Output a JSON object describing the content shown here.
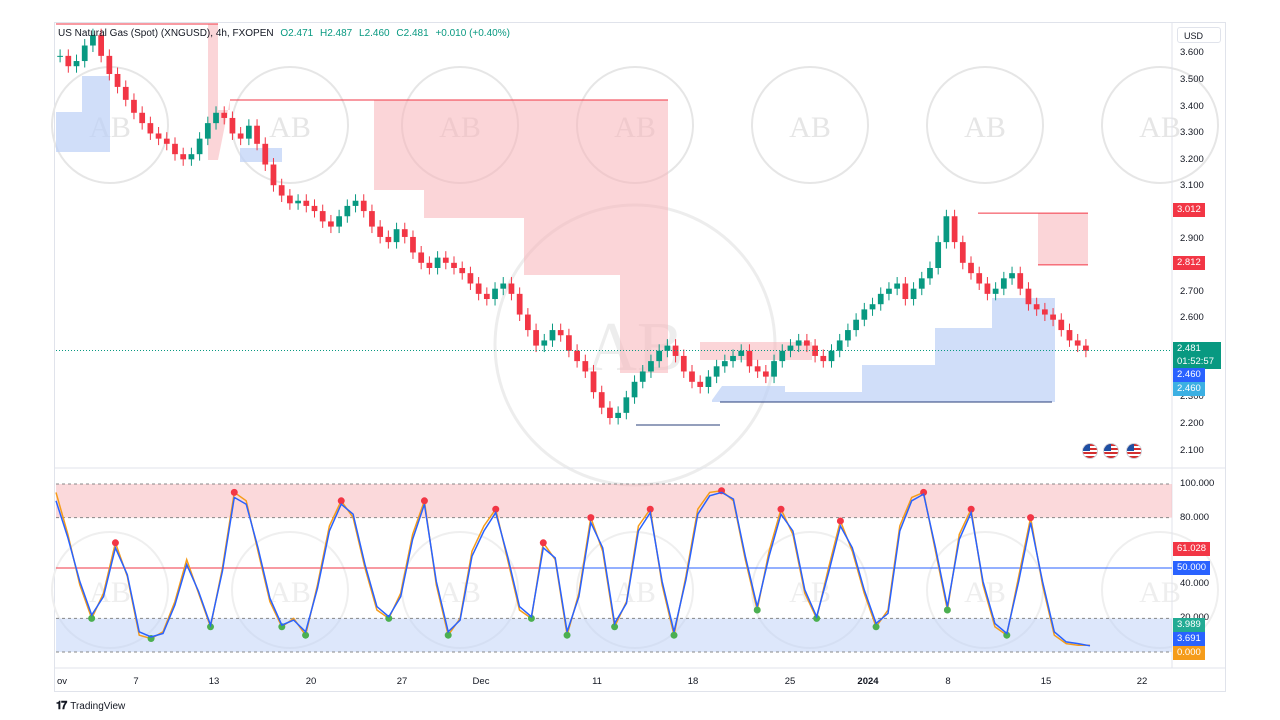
{
  "legend": {
    "symbol": "US Natural Gas (Spot) (XNGUSD), 4h, FXOPEN",
    "open": "O2.471",
    "high": "H2.487",
    "low": "L2.460",
    "close": "C2.481",
    "change": "+0.010 (+0.40%)"
  },
  "currency": "USD",
  "price_axis": [
    "3.600",
    "3.500",
    "3.400",
    "3.300",
    "3.200",
    "3.100",
    "2.900",
    "2.700",
    "2.600",
    "2.300",
    "2.200",
    "2.100"
  ],
  "price_tags": {
    "resistance_high": "3.012",
    "resistance_low": "2.812",
    "last_price": "2.481",
    "countdown": "01:52:57",
    "support_a": "2.460",
    "support_b": "2.460"
  },
  "oscillator_axis": [
    "100.000",
    "80.000",
    "40.000",
    "20.000"
  ],
  "oscillator_tags": {
    "level_61": "61.028",
    "level_50": "50.000",
    "k_value": "3.989",
    "d_value": "3.691",
    "zero": "0.000"
  },
  "time_axis": [
    "ov",
    "7",
    "13",
    "20",
    "27",
    "Dec",
    "11",
    "18",
    "25",
    "2024",
    "8",
    "15",
    "22"
  ],
  "brand": "TradingView",
  "watermark": "AB",
  "colors": {
    "up": "#089981",
    "down": "#f23645",
    "red_zone": "#f7b3b8",
    "blue_zone": "#bcd0f7",
    "k_line": "#f59c1a",
    "d_line": "#2962ff",
    "tag_red": "#f23645",
    "tag_green": "#089981",
    "tag_blue": "#2962ff",
    "tag_teal": "#22ab94",
    "tag_orange": "#f59c1a",
    "tag_cyan": "#3cb0e3"
  },
  "icons": [
    "us-flag-icon",
    "us-flag-icon",
    "us-flag-icon"
  ],
  "chart_data": [
    {
      "type": "candlestick",
      "title": "US Natural Gas (Spot) (XNGUSD), 4h, FXOPEN",
      "ylim": [
        2.05,
        3.72
      ],
      "y_ticks": [
        3.6,
        3.5,
        3.4,
        3.3,
        3.2,
        3.1,
        2.9,
        2.7,
        2.6,
        2.3,
        2.2,
        2.1
      ],
      "x_categories": [
        "ov",
        "7",
        "13",
        "20",
        "27",
        "Dec",
        "11",
        "18",
        "25",
        "2024",
        "8",
        "15",
        "22"
      ],
      "close_path": [
        3.62,
        3.58,
        3.6,
        3.66,
        3.7,
        3.62,
        3.55,
        3.5,
        3.45,
        3.4,
        3.36,
        3.32,
        3.3,
        3.28,
        3.24,
        3.22,
        3.24,
        3.3,
        3.36,
        3.4,
        3.38,
        3.32,
        3.3,
        3.35,
        3.28,
        3.2,
        3.12,
        3.08,
        3.05,
        3.06,
        3.04,
        3.02,
        2.98,
        2.96,
        3.0,
        3.04,
        3.06,
        3.02,
        2.96,
        2.92,
        2.9,
        2.95,
        2.92,
        2.86,
        2.82,
        2.8,
        2.84,
        2.82,
        2.8,
        2.78,
        2.74,
        2.7,
        2.68,
        2.72,
        2.74,
        2.7,
        2.62,
        2.56,
        2.5,
        2.52,
        2.56,
        2.54,
        2.48,
        2.44,
        2.4,
        2.32,
        2.26,
        2.22,
        2.24,
        2.3,
        2.36,
        2.4,
        2.44,
        2.48,
        2.5,
        2.46,
        2.4,
        2.36,
        2.34,
        2.38,
        2.42,
        2.44,
        2.46,
        2.48,
        2.42,
        2.4,
        2.38,
        2.44,
        2.48,
        2.5,
        2.52,
        2.5,
        2.46,
        2.44,
        2.48,
        2.52,
        2.56,
        2.6,
        2.64,
        2.66,
        2.7,
        2.72,
        2.74,
        2.68,
        2.72,
        2.76,
        2.8,
        2.9,
        3.0,
        2.9,
        2.82,
        2.78,
        2.74,
        2.7,
        2.72,
        2.76,
        2.78,
        2.72,
        2.66,
        2.64,
        2.62,
        2.6,
        2.56,
        2.52,
        2.5,
        2.48
      ],
      "last_close": 2.481,
      "zones": [
        {
          "kind": "resistance",
          "from": 2.812,
          "to": 3.012
        },
        {
          "kind": "support",
          "level": 2.46
        }
      ]
    },
    {
      "type": "line",
      "title": "",
      "ylim": [
        0,
        100
      ],
      "y_ticks": [
        100,
        80,
        40,
        20
      ],
      "levels": [
        100,
        80,
        61.028,
        50,
        20,
        0
      ],
      "series": [
        {
          "values": [
            95,
            70,
            40,
            20,
            35,
            65,
            45,
            10,
            8,
            12,
            30,
            55,
            35,
            15,
            50,
            95,
            90,
            60,
            30,
            15,
            20,
            10,
            40,
            75,
            90,
            80,
            50,
            25,
            20,
            35,
            70,
            90,
            40,
            10,
            20,
            60,
            75,
            85,
            55,
            25,
            20,
            65,
            55,
            10,
            35,
            80,
            60,
            15,
            30,
            75,
            85,
            40,
            10,
            45,
            85,
            95,
            96,
            90,
            55,
            25,
            60,
            85,
            70,
            35,
            20,
            50,
            78,
            60,
            35,
            15,
            25,
            75,
            92,
            95,
            60,
            25,
            70,
            85,
            40,
            15,
            10,
            45,
            80,
            40,
            10,
            5,
            4,
            3.989
          ]
        },
        {
          "values": [
            90,
            68,
            42,
            22,
            33,
            62,
            46,
            12,
            9,
            11,
            28,
            52,
            36,
            16,
            48,
            92,
            88,
            62,
            32,
            16,
            19,
            12,
            38,
            72,
            88,
            82,
            52,
            27,
            21,
            33,
            67,
            88,
            42,
            12,
            19,
            57,
            72,
            83,
            57,
            27,
            21,
            62,
            56,
            12,
            33,
            77,
            62,
            17,
            29,
            72,
            83,
            42,
            12,
            43,
            82,
            93,
            95,
            91,
            57,
            27,
            57,
            82,
            72,
            37,
            21,
            47,
            75,
            62,
            37,
            17,
            23,
            72,
            90,
            94,
            62,
            27,
            67,
            83,
            42,
            17,
            11,
            42,
            77,
            42,
            12,
            6,
            5,
            3.691
          ]
        }
      ]
    }
  ]
}
